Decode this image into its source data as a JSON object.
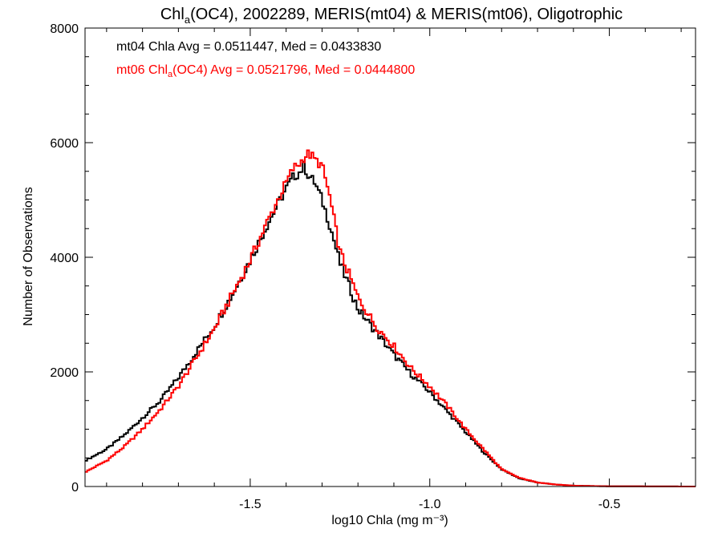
{
  "chart_data": {
    "type": "line",
    "title": "Chl_a(OC4), 2002289, MERIS(mt04) & MERIS(mt06), Oligotrophic",
    "title_parts": {
      "pre": "Chl",
      "sub": "a",
      "post": "(OC4), 2002289, MERIS(mt04) & MERIS(mt06), Oligotrophic"
    },
    "xlabel": "log10 Chla (mg m⁻³)",
    "ylabel": "Number of Observations",
    "xlim": [
      -1.96,
      -0.26
    ],
    "ylim": [
      0,
      8000
    ],
    "x_ticks": [
      "-1.5",
      "-1.0",
      "-0.5"
    ],
    "y_ticks": [
      "0",
      "2000",
      "4000",
      "6000",
      "8000"
    ],
    "grid": false,
    "annotations": {
      "line1": "mt04 Chla Avg = 0.0511447, Med = 0.0433830",
      "line2_pre": "mt06 Chl",
      "line2_sub": "a",
      "line2_post": "(OC4) Avg = 0.0521796, Med = 0.0444800"
    },
    "series": [
      {
        "color": "#000000",
        "x": [
          -1.96,
          -1.9,
          -1.85,
          -1.8,
          -1.75,
          -1.7,
          -1.65,
          -1.6,
          -1.55,
          -1.5,
          -1.45,
          -1.4,
          -1.38,
          -1.36,
          -1.35,
          -1.34,
          -1.32,
          -1.3,
          -1.28,
          -1.25,
          -1.2,
          -1.15,
          -1.1,
          -1.05,
          -1.0,
          -0.95,
          -0.9,
          -0.85,
          -0.8,
          -0.75,
          -0.7,
          -0.65,
          -0.6,
          -0.55,
          -0.5,
          -0.4,
          -0.26
        ],
        "y": [
          450,
          650,
          900,
          1200,
          1500,
          1900,
          2350,
          2800,
          3350,
          3950,
          4600,
          5200,
          5400,
          5500,
          5600,
          5450,
          5300,
          5000,
          4600,
          3900,
          3100,
          2700,
          2300,
          1950,
          1650,
          1300,
          950,
          600,
          300,
          140,
          70,
          35,
          15,
          8,
          4,
          2,
          0
        ]
      },
      {
        "color": "#ff0000",
        "x": [
          -1.96,
          -1.9,
          -1.85,
          -1.8,
          -1.75,
          -1.7,
          -1.65,
          -1.6,
          -1.55,
          -1.5,
          -1.45,
          -1.4,
          -1.38,
          -1.36,
          -1.35,
          -1.34,
          -1.33,
          -1.32,
          -1.3,
          -1.28,
          -1.25,
          -1.2,
          -1.15,
          -1.1,
          -1.05,
          -1.0,
          -0.95,
          -0.9,
          -0.85,
          -0.8,
          -0.75,
          -0.7,
          -0.65,
          -0.6,
          -0.55,
          -0.5,
          -0.4,
          -0.26
        ],
        "y": [
          250,
          450,
          700,
          1000,
          1350,
          1750,
          2250,
          2750,
          3350,
          3950,
          4650,
          5300,
          5550,
          5650,
          5750,
          5800,
          5780,
          5700,
          5600,
          5100,
          4100,
          3300,
          2800,
          2450,
          2050,
          1750,
          1400,
          1000,
          650,
          300,
          150,
          70,
          35,
          15,
          8,
          4,
          2,
          0
        ]
      }
    ]
  }
}
